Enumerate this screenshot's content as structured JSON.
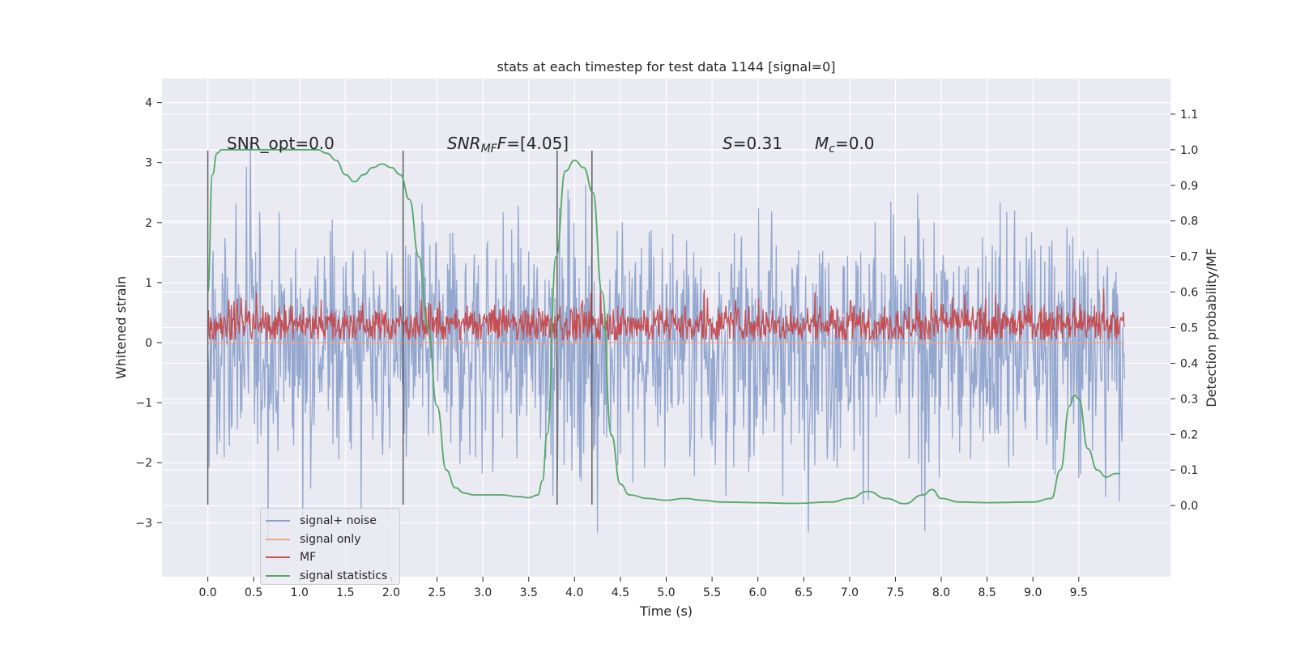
{
  "chart_data": {
    "type": "line",
    "title": "stats at each timestep for test data 1144 [signal=0]",
    "xlabel": "Time (s)",
    "ylabel_left": "Whitened strain",
    "ylabel_right": "Detection probability/MF",
    "xlim": [
      -0.5,
      10.5
    ],
    "ylim_left": [
      -3.9,
      4.4
    ],
    "ylim_right": [
      -0.2,
      1.2
    ],
    "x_ticks": [
      "0.0",
      "0.5",
      "1.0",
      "1.5",
      "2.0",
      "2.5",
      "3.0",
      "3.5",
      "4.0",
      "4.5",
      "5.0",
      "5.5",
      "6.0",
      "6.5",
      "7.0",
      "7.5",
      "8.0",
      "8.5",
      "9.0",
      "9.5"
    ],
    "y_ticks_left": [
      "−3",
      "−2",
      "−1",
      "0",
      "1",
      "2",
      "3",
      "4"
    ],
    "y_ticks_right": [
      "0.0",
      "0.1",
      "0.2",
      "0.3",
      "0.4",
      "0.5",
      "0.6",
      "0.7",
      "0.8",
      "0.9",
      "1.0",
      "1.1"
    ],
    "grid": true,
    "legend_position": "bottom-left",
    "annotations": {
      "snr_opt": "SNR_opt=0.0",
      "snr_mf_base": "SNR",
      "snr_mf_sub": "MF",
      "snr_mf_val": "=[4.05]",
      "s_label": "S",
      "s_val": "=0.31",
      "mc_label": "M",
      "mc_sub": "c",
      "mc_val": "=0.0"
    },
    "vertical_markers_x": [
      0.0,
      2.13,
      3.81,
      4.19
    ],
    "series": [
      {
        "name": "signal+ noise",
        "color": "#8fa3cc",
        "axis": "left",
        "kind": "noise",
        "x_range": [
          0.0,
          10.0
        ],
        "sigma": 1.0,
        "typical_max": 3.0,
        "typical_min": -3.0
      },
      {
        "name": "signal only",
        "color": "#e8a58b",
        "axis": "left",
        "kind": "flat",
        "x_range": [
          0.0,
          10.0
        ],
        "value": 0.0
      },
      {
        "name": "MF",
        "color": "#c44e52",
        "axis": "left",
        "kind": "noise",
        "x_range": [
          0.0,
          10.0
        ],
        "center": 0.3,
        "typical_max": 0.9,
        "typical_min": 0.05
      },
      {
        "name": "signal statistics",
        "color": "#55a868",
        "axis": "right",
        "x": [
          0.0,
          0.05,
          0.1,
          0.15,
          0.2,
          0.3,
          0.5,
          0.8,
          1.0,
          1.2,
          1.3,
          1.4,
          1.5,
          1.6,
          1.7,
          1.8,
          1.9,
          2.0,
          2.1,
          2.2,
          2.3,
          2.4,
          2.5,
          2.6,
          2.7,
          2.8,
          2.9,
          3.0,
          3.2,
          3.4,
          3.5,
          3.6,
          3.65,
          3.7,
          3.8,
          3.9,
          4.0,
          4.1,
          4.2,
          4.3,
          4.4,
          4.5,
          4.6,
          4.8,
          5.0,
          5.2,
          5.4,
          5.6,
          6.0,
          6.4,
          6.8,
          7.0,
          7.2,
          7.4,
          7.6,
          7.8,
          7.9,
          8.0,
          8.2,
          8.5,
          9.0,
          9.2,
          9.3,
          9.4,
          9.45,
          9.5,
          9.6,
          9.7,
          9.8,
          9.9,
          9.95
        ],
        "y": [
          0.6,
          0.93,
          0.99,
          1.0,
          1.0,
          1.0,
          1.0,
          1.0,
          1.0,
          1.0,
          0.99,
          0.97,
          0.93,
          0.91,
          0.93,
          0.95,
          0.96,
          0.95,
          0.93,
          0.86,
          0.7,
          0.5,
          0.28,
          0.1,
          0.05,
          0.035,
          0.03,
          0.03,
          0.03,
          0.025,
          0.022,
          0.03,
          0.07,
          0.2,
          0.7,
          0.94,
          0.97,
          0.95,
          0.88,
          0.6,
          0.2,
          0.06,
          0.03,
          0.02,
          0.015,
          0.02,
          0.015,
          0.01,
          0.008,
          0.006,
          0.01,
          0.02,
          0.04,
          0.02,
          0.005,
          0.03,
          0.045,
          0.02,
          0.01,
          0.008,
          0.01,
          0.02,
          0.1,
          0.28,
          0.31,
          0.3,
          0.16,
          0.1,
          0.08,
          0.09,
          0.09
        ]
      }
    ]
  }
}
